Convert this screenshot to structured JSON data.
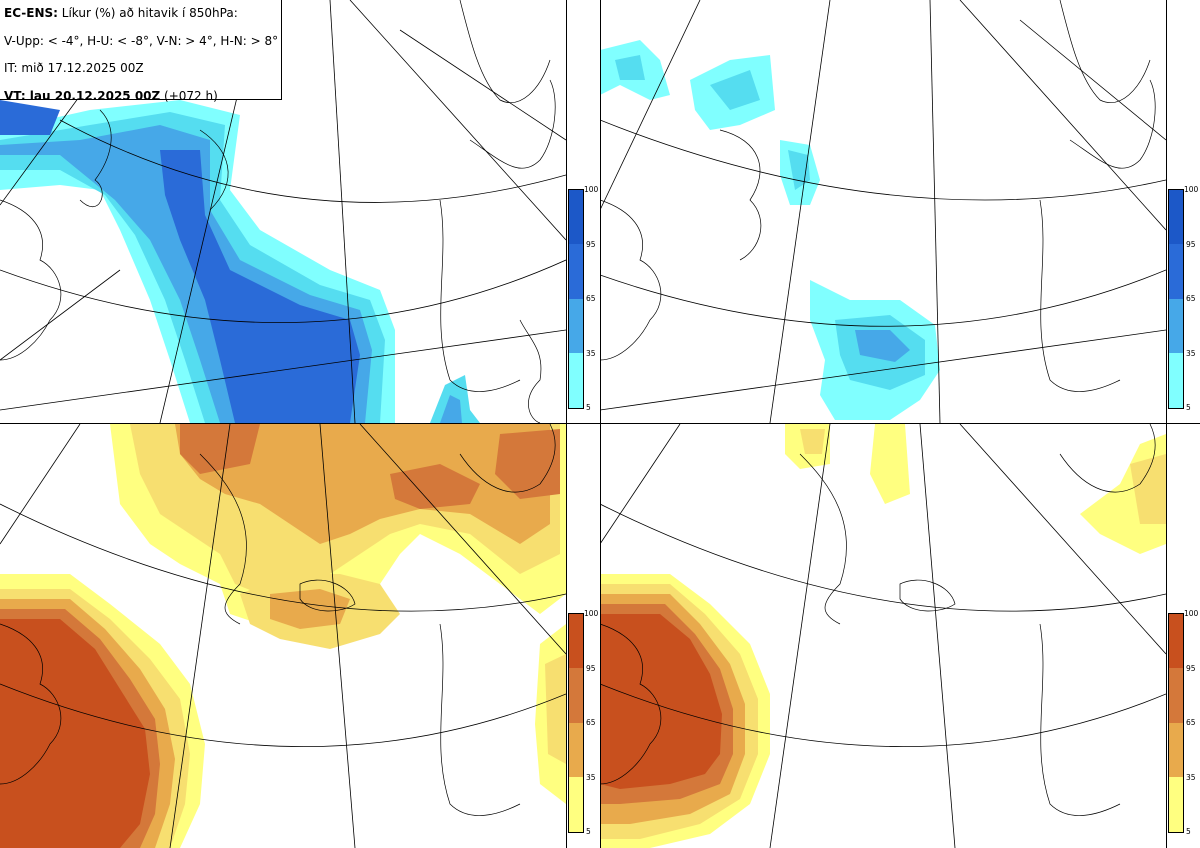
{
  "info": {
    "title_bold": "EC-ENS:",
    "title_rest": " Líkur (%) að hitavik í 850hPa:",
    "legend_line": "V-Upp: < -4°, H-U: < -8°, V-N: > 4°, H-N: > 8°",
    "init_time": "IT: mið 17.12.2025 00Z",
    "valid_bold": "VT: lau 20.12.2025 00Z",
    "valid_rest": " (+072 h)"
  },
  "colorbar_ticks": [
    "100",
    "95",
    "65",
    "35",
    "5"
  ],
  "colors": {
    "cold": [
      "#80ffff",
      "#55ddf0",
      "#46a8e8",
      "#2a6bd8",
      "#1c58c8"
    ],
    "warm": [
      "#ffff80",
      "#f7df70",
      "#e8aa4c",
      "#d4783a",
      "#c8501e"
    ],
    "coast": "#000000",
    "grid": "#000000"
  },
  "panels": [
    {
      "id": "v-upp",
      "scheme": "cold"
    },
    {
      "id": "h-u",
      "scheme": "cold"
    },
    {
      "id": "v-n",
      "scheme": "warm"
    },
    {
      "id": "h-n",
      "scheme": "warm"
    }
  ]
}
